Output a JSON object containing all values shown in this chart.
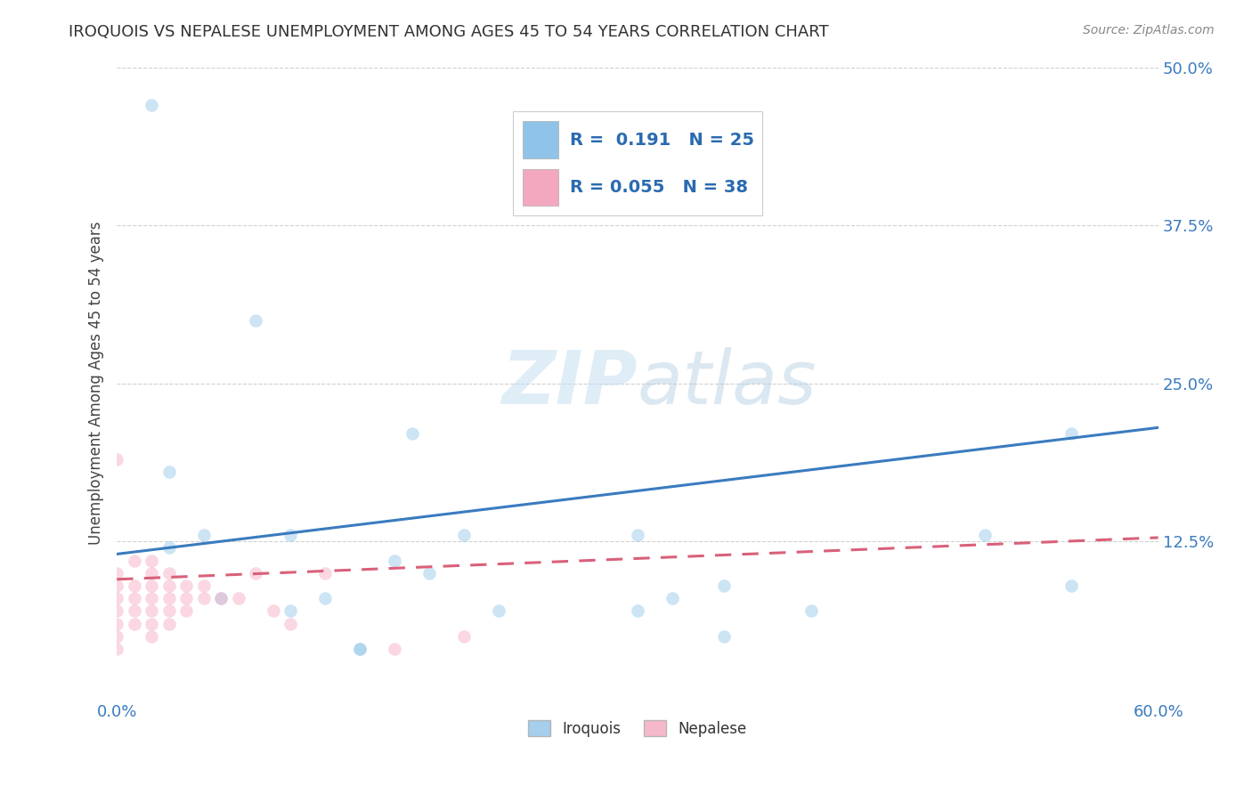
{
  "title": "IROQUOIS VS NEPALESE UNEMPLOYMENT AMONG AGES 45 TO 54 YEARS CORRELATION CHART",
  "source": "Source: ZipAtlas.com",
  "ylabel": "Unemployment Among Ages 45 to 54 years",
  "watermark": "ZIPatlas",
  "xlim": [
    0.0,
    0.6
  ],
  "ylim": [
    0.0,
    0.5
  ],
  "xticks": [
    0.0,
    0.6
  ],
  "xticklabels": [
    "0.0%",
    "60.0%"
  ],
  "yticks": [
    0.125,
    0.25,
    0.375,
    0.5
  ],
  "yticklabels": [
    "12.5%",
    "25.0%",
    "37.5%",
    "50.0%"
  ],
  "iroquois_color": "#8fc4e8",
  "nepalese_color": "#f4a8c0",
  "iroquois_line_color": "#3a7bbf",
  "nepalese_line_color": "#d9607a",
  "R_iroquois": 0.191,
  "N_iroquois": 25,
  "R_nepalese": 0.055,
  "N_nepalese": 38,
  "iroquois_x": [
    0.02,
    0.03,
    0.05,
    0.08,
    0.1,
    0.12,
    0.14,
    0.16,
    0.17,
    0.2,
    0.22,
    0.3,
    0.32,
    0.35,
    0.4,
    0.5,
    0.55,
    0.55,
    0.03,
    0.06,
    0.1,
    0.14,
    0.18,
    0.3,
    0.35
  ],
  "iroquois_y": [
    0.47,
    0.18,
    0.13,
    0.3,
    0.13,
    0.08,
    0.04,
    0.11,
    0.21,
    0.13,
    0.07,
    0.13,
    0.08,
    0.09,
    0.07,
    0.13,
    0.21,
    0.09,
    0.12,
    0.08,
    0.07,
    0.04,
    0.1,
    0.07,
    0.05
  ],
  "nepalese_x": [
    0.0,
    0.0,
    0.0,
    0.0,
    0.0,
    0.0,
    0.0,
    0.0,
    0.01,
    0.01,
    0.01,
    0.01,
    0.01,
    0.02,
    0.02,
    0.02,
    0.02,
    0.02,
    0.02,
    0.02,
    0.03,
    0.03,
    0.03,
    0.03,
    0.03,
    0.04,
    0.04,
    0.04,
    0.05,
    0.05,
    0.06,
    0.07,
    0.08,
    0.09,
    0.1,
    0.12,
    0.16,
    0.2
  ],
  "nepalese_y": [
    0.19,
    0.1,
    0.09,
    0.08,
    0.07,
    0.06,
    0.05,
    0.04,
    0.11,
    0.09,
    0.08,
    0.07,
    0.06,
    0.11,
    0.1,
    0.09,
    0.08,
    0.07,
    0.06,
    0.05,
    0.1,
    0.09,
    0.08,
    0.07,
    0.06,
    0.09,
    0.08,
    0.07,
    0.09,
    0.08,
    0.08,
    0.08,
    0.1,
    0.07,
    0.06,
    0.1,
    0.04,
    0.05
  ],
  "background_color": "#ffffff",
  "grid_color": "#d0d0d0",
  "marker_size": 110,
  "marker_alpha": 0.45,
  "line_width": 2.2,
  "iroquois_line_y0": 0.115,
  "iroquois_line_y1": 0.215,
  "nepalese_line_y0": 0.095,
  "nepalese_line_y1": 0.128
}
